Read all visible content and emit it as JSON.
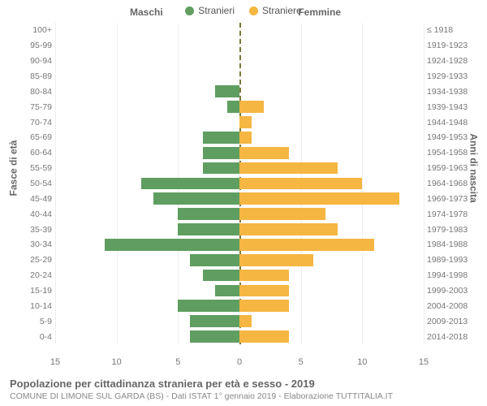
{
  "chart": {
    "type": "population-pyramid",
    "legend": [
      {
        "label": "Stranieri",
        "color": "#5f9e60"
      },
      {
        "label": "Straniere",
        "color": "#f5b642"
      }
    ],
    "side_titles": {
      "left": "Maschi",
      "right": "Femmine"
    },
    "vaxis_labels": {
      "left": "Fasce di età",
      "right": "Anni di nascita"
    },
    "xlim": 15,
    "xticks": [
      15,
      10,
      5,
      0,
      5,
      10,
      15
    ],
    "xtick_positions_pct": [
      0,
      16.67,
      33.33,
      50,
      66.67,
      83.33,
      100
    ],
    "grid_color": "#eeeeee",
    "center_line_color": "#7a7a3a",
    "bar_colors": {
      "male": "#5f9e60",
      "female": "#f5b642"
    },
    "background_color": "#ffffff",
    "rows": [
      {
        "age": "100+",
        "birth": "≤ 1918",
        "m": 0,
        "f": 0
      },
      {
        "age": "95-99",
        "birth": "1919-1923",
        "m": 0,
        "f": 0
      },
      {
        "age": "90-94",
        "birth": "1924-1928",
        "m": 0,
        "f": 0
      },
      {
        "age": "85-89",
        "birth": "1929-1933",
        "m": 0,
        "f": 0
      },
      {
        "age": "80-84",
        "birth": "1934-1938",
        "m": 2,
        "f": 0
      },
      {
        "age": "75-79",
        "birth": "1939-1943",
        "m": 1,
        "f": 2
      },
      {
        "age": "70-74",
        "birth": "1944-1948",
        "m": 0,
        "f": 1
      },
      {
        "age": "65-69",
        "birth": "1949-1953",
        "m": 3,
        "f": 1
      },
      {
        "age": "60-64",
        "birth": "1954-1958",
        "m": 3,
        "f": 4
      },
      {
        "age": "55-59",
        "birth": "1959-1963",
        "m": 3,
        "f": 8
      },
      {
        "age": "50-54",
        "birth": "1964-1968",
        "m": 8,
        "f": 10
      },
      {
        "age": "45-49",
        "birth": "1969-1973",
        "m": 7,
        "f": 13
      },
      {
        "age": "40-44",
        "birth": "1974-1978",
        "m": 5,
        "f": 7
      },
      {
        "age": "35-39",
        "birth": "1979-1983",
        "m": 5,
        "f": 8
      },
      {
        "age": "30-34",
        "birth": "1984-1988",
        "m": 11,
        "f": 11
      },
      {
        "age": "25-29",
        "birth": "1989-1993",
        "m": 4,
        "f": 6
      },
      {
        "age": "20-24",
        "birth": "1994-1998",
        "m": 3,
        "f": 4
      },
      {
        "age": "15-19",
        "birth": "1999-2003",
        "m": 2,
        "f": 4
      },
      {
        "age": "10-14",
        "birth": "2004-2008",
        "m": 5,
        "f": 4
      },
      {
        "age": "5-9",
        "birth": "2009-2013",
        "m": 4,
        "f": 1
      },
      {
        "age": "0-4",
        "birth": "2014-2018",
        "m": 4,
        "f": 4
      }
    ],
    "caption_title": "Popolazione per cittadinanza straniera per età e sesso - 2019",
    "caption_sub": "COMUNE DI LIMONE SUL GARDA (BS) - Dati ISTAT 1° gennaio 2019 - Elaborazione TUTTITALIA.IT",
    "label_fontsize": 12,
    "tick_fontsize": 11,
    "yticklabel_fontsize": 10.5
  }
}
